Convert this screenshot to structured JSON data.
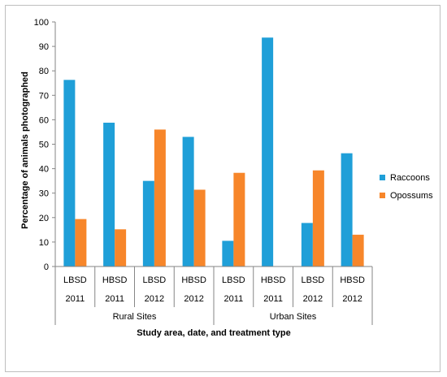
{
  "chart_data": {
    "type": "bar",
    "xlabel": "Study area, date, and treatment type",
    "ylabel": "Percentage of animals photographed",
    "ylim": [
      0,
      100
    ],
    "yticks": [
      0,
      10,
      20,
      30,
      40,
      50,
      60,
      70,
      80,
      90,
      100
    ],
    "grid": false,
    "legend_position": "right",
    "categories": [
      {
        "treatment": "LBSD",
        "year": "2011",
        "area": "Rural Sites"
      },
      {
        "treatment": "HBSD",
        "year": "2011",
        "area": "Rural Sites"
      },
      {
        "treatment": "LBSD",
        "year": "2012",
        "area": "Rural Sites"
      },
      {
        "treatment": "HBSD",
        "year": "2012",
        "area": "Rural Sites"
      },
      {
        "treatment": "LBSD",
        "year": "2011",
        "area": "Urban Sites"
      },
      {
        "treatment": "HBSD",
        "year": "2011",
        "area": "Urban Sites"
      },
      {
        "treatment": "LBSD",
        "year": "2012",
        "area": "Urban Sites"
      },
      {
        "treatment": "HBSD",
        "year": "2012",
        "area": "Urban Sites"
      }
    ],
    "groups": [
      "Rural Sites",
      "Urban Sites"
    ],
    "series": [
      {
        "name": "Raccoons",
        "color": "#1f9fd8",
        "values": [
          76.3,
          58.8,
          35.0,
          53.0,
          10.5,
          93.6,
          17.8,
          46.3
        ]
      },
      {
        "name": "Opossums",
        "color": "#f7862a",
        "values": [
          19.4,
          15.2,
          56.0,
          31.4,
          38.3,
          0,
          39.3,
          13.0
        ]
      }
    ]
  }
}
